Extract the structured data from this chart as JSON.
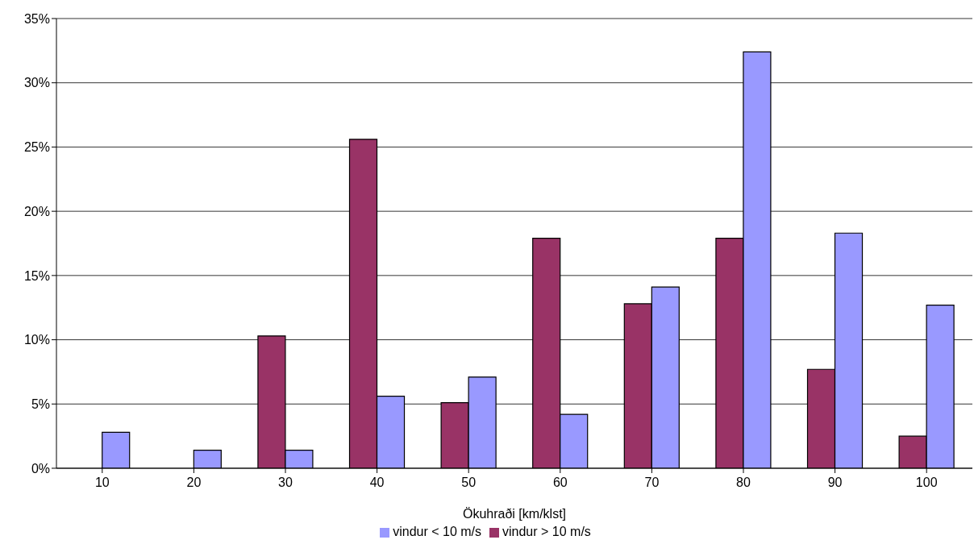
{
  "chart_data": {
    "type": "bar",
    "xlabel": "Ökuhraði [km/klst]",
    "categories": [
      "10",
      "20",
      "30",
      "40",
      "50",
      "60",
      "70",
      "80",
      "90",
      "100"
    ],
    "series": [
      {
        "name": "vindur > 10 m/s",
        "color": "#993366",
        "values": [
          0,
          0,
          10.3,
          25.6,
          5.1,
          17.9,
          12.8,
          17.9,
          7.7,
          2.5
        ]
      },
      {
        "name": "vindur < 10 m/s",
        "color": "#9999ff",
        "values": [
          2.8,
          1.4,
          1.4,
          5.6,
          7.1,
          4.2,
          14.1,
          32.4,
          18.3,
          12.7
        ]
      }
    ],
    "ylim": [
      0,
      35
    ],
    "yticks": [
      {
        "value": 0,
        "label": "0%"
      },
      {
        "value": 5,
        "label": "5%"
      },
      {
        "value": 10,
        "label": "10%"
      },
      {
        "value": 15,
        "label": "15%"
      },
      {
        "value": 20,
        "label": "20%"
      },
      {
        "value": 25,
        "label": "25%"
      },
      {
        "value": 30,
        "label": "30%"
      },
      {
        "value": 35,
        "label": "35%"
      }
    ],
    "grid": "y",
    "legend": "bottom"
  }
}
